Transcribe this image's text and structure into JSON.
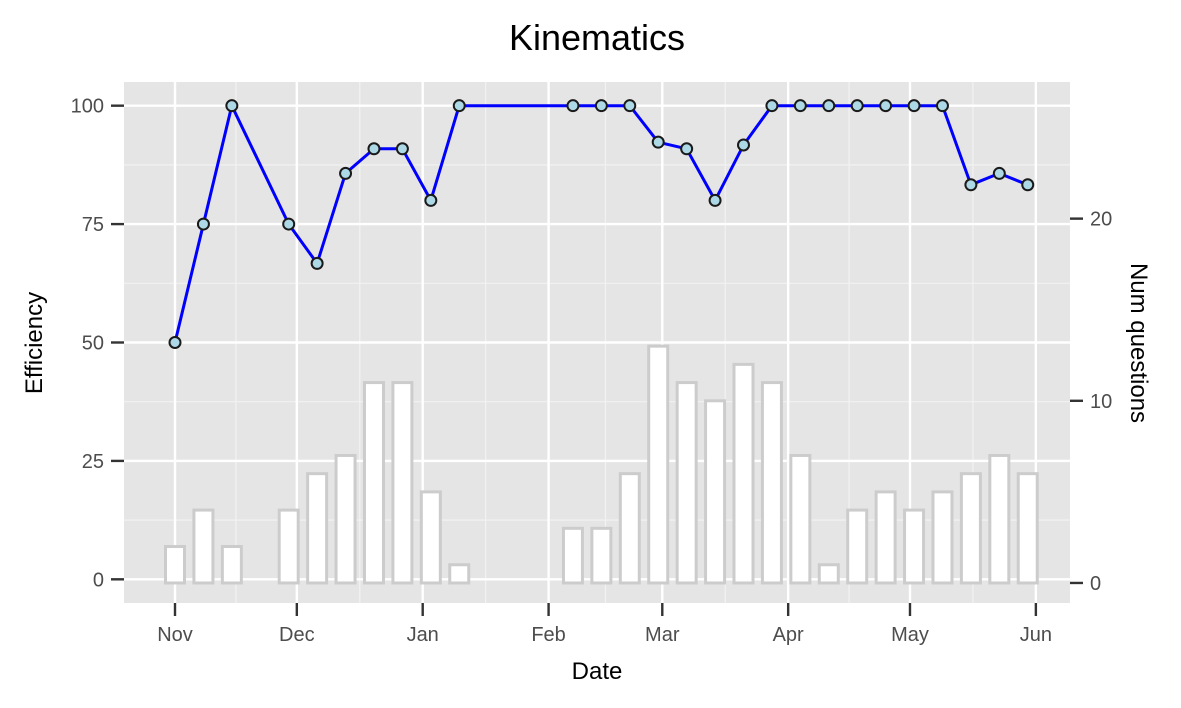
{
  "chart_data": {
    "type": "line",
    "title": "Kinematics",
    "xlabel": "Date",
    "ylabel": "Efficiency",
    "y2label": "Num questions",
    "x_ticks": [
      "Nov",
      "Dec",
      "Jan",
      "Feb",
      "Mar",
      "Apr",
      "May",
      "Jun"
    ],
    "y_ticks": [
      "0",
      "25",
      "50",
      "75",
      "100"
    ],
    "y2_ticks": [
      "0",
      "10",
      "20"
    ],
    "ylim": [
      -5,
      105
    ],
    "y2lim": [
      -1.1,
      27.5
    ],
    "grid": true,
    "x_dates": [
      "2016-11-01",
      "2016-11-08",
      "2016-11-15",
      "2016-11-22",
      "2016-11-29",
      "2016-12-06",
      "2016-12-13",
      "2016-12-20",
      "2016-12-27",
      "2017-01-03",
      "2017-01-10",
      "2017-01-17",
      "2017-01-24",
      "2017-01-31",
      "2017-02-07",
      "2017-02-14",
      "2017-02-21",
      "2017-02-28",
      "2017-03-07",
      "2017-03-14",
      "2017-03-21",
      "2017-03-28",
      "2017-04-04",
      "2017-04-11",
      "2017-04-18",
      "2017-04-25",
      "2017-05-02",
      "2017-05-09",
      "2017-05-16",
      "2017-05-23",
      "2017-05-30"
    ],
    "series": [
      {
        "name": "",
        "role": "line",
        "color": "#0000ff",
        "marker_fill": "#add8e6",
        "marker_stroke": "#1a1a1a",
        "values": [
          50,
          75,
          100,
          null,
          75,
          66.7,
          85.7,
          90.9,
          90.9,
          80,
          100,
          null,
          null,
          null,
          100,
          100,
          100,
          92.3,
          90.9,
          80,
          91.7,
          100,
          100,
          100,
          100,
          100,
          100,
          100,
          83.3,
          85.7,
          83.3
        ]
      },
      {
        "name": "",
        "role": "bar",
        "axis": "right",
        "fill": "#ffffff",
        "stroke": "#cccccc",
        "values": [
          2,
          4,
          2,
          null,
          4,
          6,
          7,
          11,
          11,
          5,
          1,
          null,
          null,
          null,
          3,
          3,
          6,
          13,
          11,
          10,
          12,
          11,
          7,
          1,
          4,
          5,
          4,
          5,
          6,
          7,
          6
        ]
      }
    ]
  }
}
